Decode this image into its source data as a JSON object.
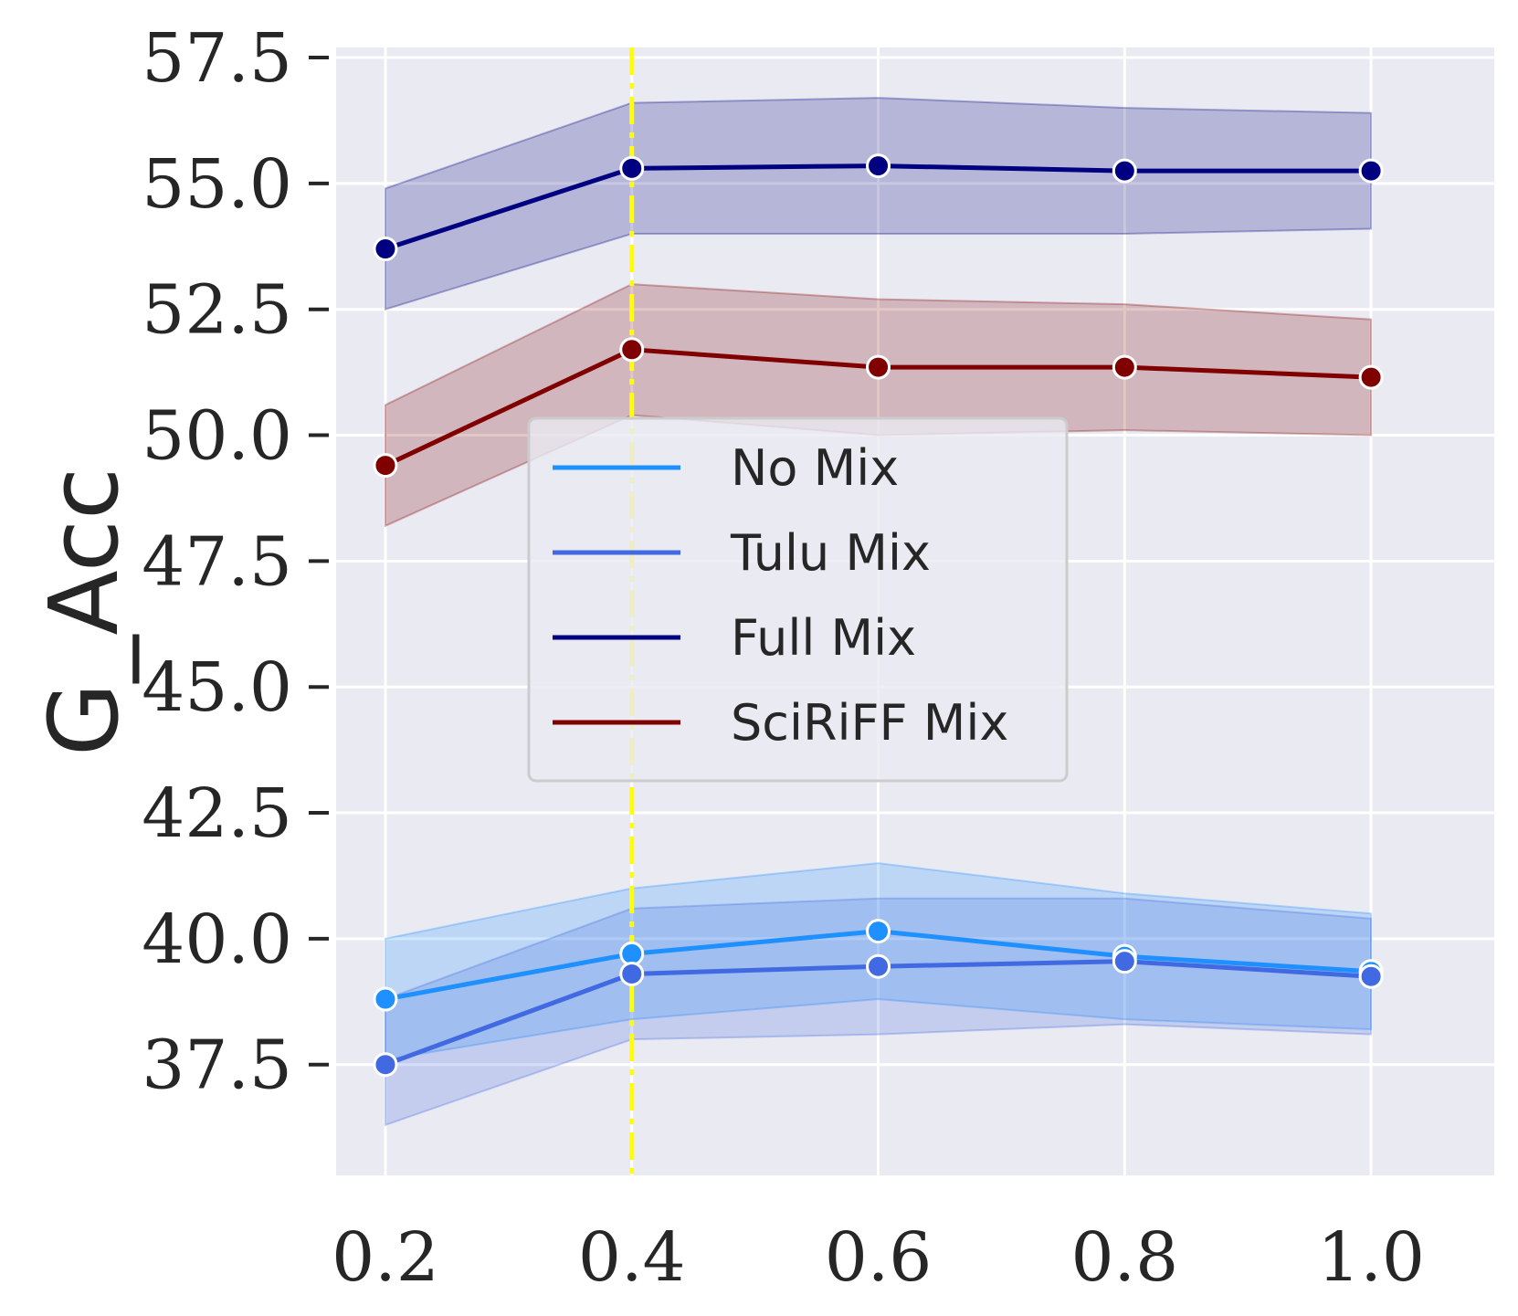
{
  "chart_data": {
    "type": "line",
    "title": "",
    "xlabel": "",
    "ylabel": "G_Acc",
    "x": [
      0.2,
      0.4,
      0.6,
      0.8,
      1.0
    ],
    "x_tick_labels": [
      "0.2",
      "0.4",
      "0.6",
      "0.8",
      "1.0"
    ],
    "y_ticks": [
      37.5,
      40.0,
      42.5,
      45.0,
      47.5,
      50.0,
      52.5,
      55.0,
      57.5
    ],
    "y_tick_labels": [
      "37.5",
      "40.0",
      "42.5",
      "45.0",
      "47.5",
      "50.0",
      "52.5",
      "55.0",
      "57.5"
    ],
    "xlim": [
      0.16,
      1.1
    ],
    "ylim": [
      35.3,
      57.7
    ],
    "grid": true,
    "legend_position": "center",
    "vertical_line": {
      "x": 0.4,
      "color": "#ffff00",
      "style": "dash-dot"
    },
    "series": [
      {
        "name": "No Mix",
        "color": "#1e90ff",
        "values": [
          38.8,
          39.7,
          40.15,
          39.65,
          39.35
        ],
        "lower": [
          37.6,
          38.4,
          38.8,
          38.4,
          38.2
        ],
        "upper": [
          40.0,
          41.0,
          41.5,
          40.9,
          40.5
        ]
      },
      {
        "name": "Tulu Mix",
        "color": "#4169e1",
        "values": [
          37.5,
          39.3,
          39.45,
          39.55,
          39.25
        ],
        "lower": [
          36.3,
          38.0,
          38.1,
          38.3,
          38.1
        ],
        "upper": [
          38.8,
          40.6,
          40.8,
          40.8,
          40.4
        ]
      },
      {
        "name": "Full Mix",
        "color": "#000080",
        "values": [
          53.7,
          55.3,
          55.35,
          55.25,
          55.25
        ],
        "lower": [
          52.5,
          54.0,
          54.0,
          54.0,
          54.1
        ],
        "upper": [
          54.9,
          56.6,
          56.7,
          56.5,
          56.4
        ]
      },
      {
        "name": "SciRiFF Mix",
        "color": "#800000",
        "values": [
          49.4,
          51.7,
          51.35,
          51.35,
          51.15
        ],
        "lower": [
          48.2,
          50.4,
          50.0,
          50.1,
          50.0
        ],
        "upper": [
          50.6,
          53.0,
          52.7,
          52.6,
          52.3
        ]
      }
    ]
  }
}
